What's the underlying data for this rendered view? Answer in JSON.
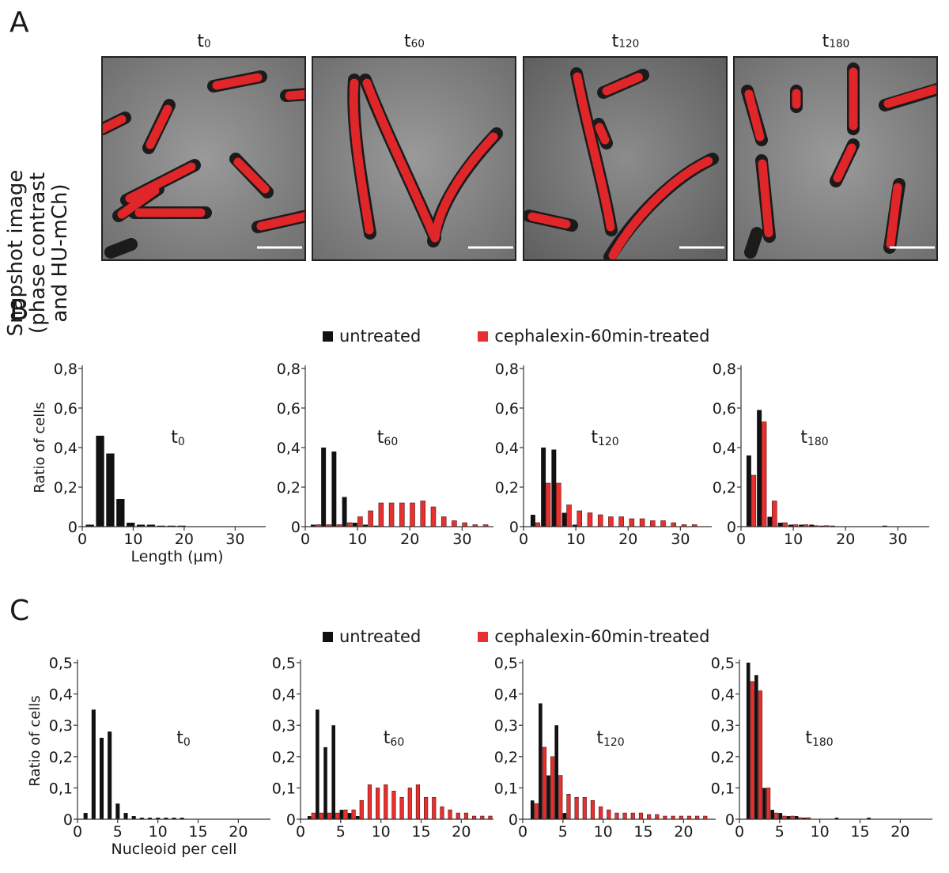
{
  "panel_labels": {
    "a": "A",
    "b": "B",
    "c": "C"
  },
  "snapshot_ylabel": [
    "Snapshot image",
    "(phase contrast",
    "and HU-mCh)"
  ],
  "timepoints": [
    {
      "base": "t",
      "sub": "0"
    },
    {
      "base": "t",
      "sub": "60"
    },
    {
      "base": "t",
      "sub": "120"
    },
    {
      "base": "t",
      "sub": "180"
    }
  ],
  "legend": {
    "untreated": "untreated",
    "treated": "cephalexin-60min-treated"
  },
  "colors": {
    "untreated": "#111111",
    "treated": "#e8302f",
    "axis": "#333333"
  },
  "chart_data": [
    {
      "id": "B-t0",
      "type": "bar",
      "panel": "B",
      "ylabel": "Ratio of cells",
      "xlabel": "Length (µm)",
      "xlim": [
        0,
        36
      ],
      "ylim": [
        0,
        0.8
      ],
      "xticks": [
        0,
        10,
        20,
        30
      ],
      "yticks": [
        0,
        0.2,
        0.4,
        0.6,
        0.8
      ],
      "ytick_labels": [
        "0",
        "0,2",
        "0,4",
        "0,6",
        "0,8"
      ],
      "bin_width": 1.6,
      "series": [
        {
          "name": "untreated",
          "x": [
            1.5,
            3.5,
            5.5,
            7.5,
            9.5,
            11.5,
            13.5,
            15.5,
            17.5,
            19.5
          ],
          "values": [
            0.01,
            0.46,
            0.37,
            0.14,
            0.02,
            0.01,
            0.01,
            0.005,
            0.005,
            0.005
          ]
        }
      ]
    },
    {
      "id": "B-t60",
      "type": "bar",
      "panel": "B",
      "ylabel": "",
      "xlabel": "",
      "xlim": [
        0,
        36
      ],
      "ylim": [
        0,
        0.8
      ],
      "xticks": [
        0,
        10,
        20,
        30
      ],
      "yticks": [
        0,
        0.2,
        0.4,
        0.6,
        0.8
      ],
      "ytick_labels": [
        "0",
        "0,2",
        "0,4",
        "0,6",
        "0,8"
      ],
      "bin_width": 0.9,
      "series": [
        {
          "name": "untreated",
          "x": [
            1.5,
            3.5,
            5.5,
            7.5,
            9.5,
            11.5,
            13.5
          ],
          "values": [
            0.01,
            0.4,
            0.38,
            0.15,
            0.02,
            0.01,
            0.005
          ]
        },
        {
          "name": "cephalexin-60min-treated",
          "x": [
            2.5,
            4.5,
            6.5,
            8.5,
            10.5,
            12.5,
            14.5,
            16.5,
            18.5,
            20.5,
            22.5,
            24.5,
            26.5,
            28.5,
            30.5,
            32.5,
            34.5
          ],
          "values": [
            0.01,
            0.01,
            0.01,
            0.02,
            0.05,
            0.08,
            0.12,
            0.12,
            0.12,
            0.12,
            0.13,
            0.1,
            0.05,
            0.03,
            0.02,
            0.01,
            0.01
          ]
        }
      ]
    },
    {
      "id": "B-t120",
      "type": "bar",
      "panel": "B",
      "ylabel": "",
      "xlabel": "",
      "xlim": [
        0,
        36
      ],
      "ylim": [
        0,
        0.8
      ],
      "xticks": [
        0,
        10,
        20,
        30
      ],
      "yticks": [
        0,
        0.2,
        0.4,
        0.6,
        0.8
      ],
      "ytick_labels": [
        "0",
        "0,2",
        "0,4",
        "0,6",
        "0,8"
      ],
      "bin_width": 0.9,
      "series": [
        {
          "name": "untreated",
          "x": [
            1.8,
            3.8,
            5.8,
            7.8,
            9.8
          ],
          "values": [
            0.06,
            0.4,
            0.39,
            0.07,
            0.01
          ]
        },
        {
          "name": "cephalexin-60min-treated",
          "x": [
            2.7,
            4.7,
            6.7,
            8.7,
            10.7,
            12.7,
            14.7,
            16.7,
            18.7,
            20.7,
            22.7,
            24.7,
            26.7,
            28.7,
            30.7,
            32.7
          ],
          "values": [
            0.02,
            0.22,
            0.22,
            0.11,
            0.08,
            0.07,
            0.06,
            0.05,
            0.05,
            0.04,
            0.04,
            0.03,
            0.03,
            0.02,
            0.01,
            0.01
          ]
        }
      ]
    },
    {
      "id": "B-t180",
      "type": "bar",
      "panel": "B",
      "ylabel": "",
      "xlabel": "",
      "xlim": [
        0,
        36
      ],
      "ylim": [
        0,
        0.8
      ],
      "xticks": [
        0,
        10,
        20,
        30
      ],
      "yticks": [
        0,
        0.2,
        0.4,
        0.6,
        0.8
      ],
      "ytick_labels": [
        "0",
        "0,2",
        "0,4",
        "0,6",
        "0,8"
      ],
      "bin_width": 0.9,
      "series": [
        {
          "name": "untreated",
          "x": [
            1.5,
            3.5,
            5.5,
            7.5,
            9.5,
            11.5,
            13.5,
            15.5,
            17.5,
            27.5
          ],
          "values": [
            0.36,
            0.59,
            0.05,
            0.02,
            0.01,
            0.01,
            0.01,
            0.005,
            0.005,
            0.005
          ]
        },
        {
          "name": "cephalexin-60min-treated",
          "x": [
            2.4,
            4.4,
            6.4,
            8.4,
            10.4,
            12.4,
            14.4,
            16.4
          ],
          "values": [
            0.26,
            0.53,
            0.13,
            0.02,
            0.01,
            0.01,
            0.005,
            0.005
          ]
        }
      ]
    },
    {
      "id": "C-t0",
      "type": "bar",
      "panel": "C",
      "ylabel": "Ratio of cells",
      "xlabel": "Nucleoid per cell",
      "xlim": [
        0,
        24
      ],
      "ylim": [
        0,
        0.5
      ],
      "xticks": [
        0,
        5,
        10,
        15,
        20
      ],
      "yticks": [
        0,
        0.1,
        0.2,
        0.3,
        0.4,
        0.5
      ],
      "ytick_labels": [
        "0",
        "0,1",
        "0,2",
        "0,3",
        "0,4",
        "0,5"
      ],
      "bin_width": 0.5,
      "series": [
        {
          "name": "untreated",
          "x": [
            1,
            2,
            3,
            4,
            5,
            6,
            7,
            8,
            9,
            10,
            11,
            12,
            13
          ],
          "values": [
            0.02,
            0.35,
            0.26,
            0.28,
            0.05,
            0.02,
            0.01,
            0.005,
            0.005,
            0.005,
            0.005,
            0.005,
            0.005
          ]
        }
      ]
    },
    {
      "id": "C-t60",
      "type": "bar",
      "panel": "C",
      "ylabel": "",
      "xlabel": "",
      "xlim": [
        0,
        24
      ],
      "ylim": [
        0,
        0.5
      ],
      "xticks": [
        0,
        5,
        10,
        15,
        20
      ],
      "yticks": [
        0,
        0.1,
        0.2,
        0.3,
        0.4,
        0.5
      ],
      "ytick_labels": [
        "0",
        "0,1",
        "0,2",
        "0,3",
        "0,4",
        "0,5"
      ],
      "bin_width": 0.45,
      "series": [
        {
          "name": "untreated",
          "x": [
            1.1,
            2.1,
            3.1,
            4.1,
            5.1,
            6.1,
            7.1
          ],
          "values": [
            0.01,
            0.35,
            0.23,
            0.3,
            0.03,
            0.02,
            0.01
          ]
        },
        {
          "name": "cephalexin-60min-treated",
          "x": [
            1.6,
            2.6,
            3.6,
            4.6,
            5.6,
            6.6,
            7.6,
            8.6,
            9.6,
            10.6,
            11.6,
            12.6,
            13.6,
            14.6,
            15.6,
            16.6,
            17.6,
            18.6,
            19.6,
            20.6,
            21.6,
            22.6,
            23.6
          ],
          "values": [
            0.02,
            0.02,
            0.02,
            0.02,
            0.03,
            0.03,
            0.06,
            0.11,
            0.1,
            0.11,
            0.09,
            0.07,
            0.1,
            0.11,
            0.07,
            0.07,
            0.04,
            0.03,
            0.02,
            0.02,
            0.01,
            0.01,
            0.01
          ]
        }
      ]
    },
    {
      "id": "C-t120",
      "type": "bar",
      "panel": "C",
      "ylabel": "",
      "xlabel": "",
      "xlim": [
        0,
        24
      ],
      "ylim": [
        0,
        0.5
      ],
      "xticks": [
        0,
        5,
        10,
        15,
        20
      ],
      "yticks": [
        0,
        0.1,
        0.2,
        0.3,
        0.4,
        0.5
      ],
      "ytick_labels": [
        "0",
        "0,1",
        "0,2",
        "0,3",
        "0,4",
        "0,5"
      ],
      "bin_width": 0.45,
      "series": [
        {
          "name": "untreated",
          "x": [
            1.2,
            2.2,
            3.2,
            4.2,
            5.2
          ],
          "values": [
            0.06,
            0.37,
            0.14,
            0.3,
            0.02
          ]
        },
        {
          "name": "cephalexin-60min-treated",
          "x": [
            1.7,
            2.7,
            3.7,
            4.7,
            5.7,
            6.7,
            7.7,
            8.7,
            9.7,
            10.7,
            11.7,
            12.7,
            13.7,
            14.7,
            15.7,
            16.7,
            17.7,
            18.7,
            19.7,
            20.7,
            21.7,
            22.7
          ],
          "values": [
            0.05,
            0.23,
            0.2,
            0.14,
            0.08,
            0.07,
            0.07,
            0.06,
            0.04,
            0.03,
            0.02,
            0.02,
            0.02,
            0.02,
            0.015,
            0.015,
            0.01,
            0.01,
            0.01,
            0.01,
            0.01,
            0.01
          ]
        }
      ]
    },
    {
      "id": "C-t180",
      "type": "bar",
      "panel": "C",
      "ylabel": "",
      "xlabel": "",
      "xlim": [
        0,
        24
      ],
      "ylim": [
        0,
        0.5
      ],
      "xticks": [
        0,
        5,
        10,
        15,
        20
      ],
      "yticks": [
        0,
        0.1,
        0.2,
        0.3,
        0.4,
        0.5
      ],
      "ytick_labels": [
        "0",
        "0,1",
        "0,2",
        "0,3",
        "0,4",
        "0,5"
      ],
      "bin_width": 0.45,
      "series": [
        {
          "name": "untreated",
          "x": [
            1.1,
            2.1,
            3.1,
            4.1,
            5.1,
            6.1,
            7.1,
            8.1,
            12.1,
            16.1
          ],
          "values": [
            0.5,
            0.46,
            0.1,
            0.03,
            0.02,
            0.01,
            0.01,
            0.005,
            0.005,
            0.005
          ]
        },
        {
          "name": "cephalexin-60min-treated",
          "x": [
            1.6,
            2.6,
            3.6,
            4.6,
            5.6,
            6.6,
            7.6,
            8.6
          ],
          "values": [
            0.44,
            0.41,
            0.1,
            0.02,
            0.01,
            0.01,
            0.005,
            0.005
          ]
        }
      ]
    }
  ]
}
